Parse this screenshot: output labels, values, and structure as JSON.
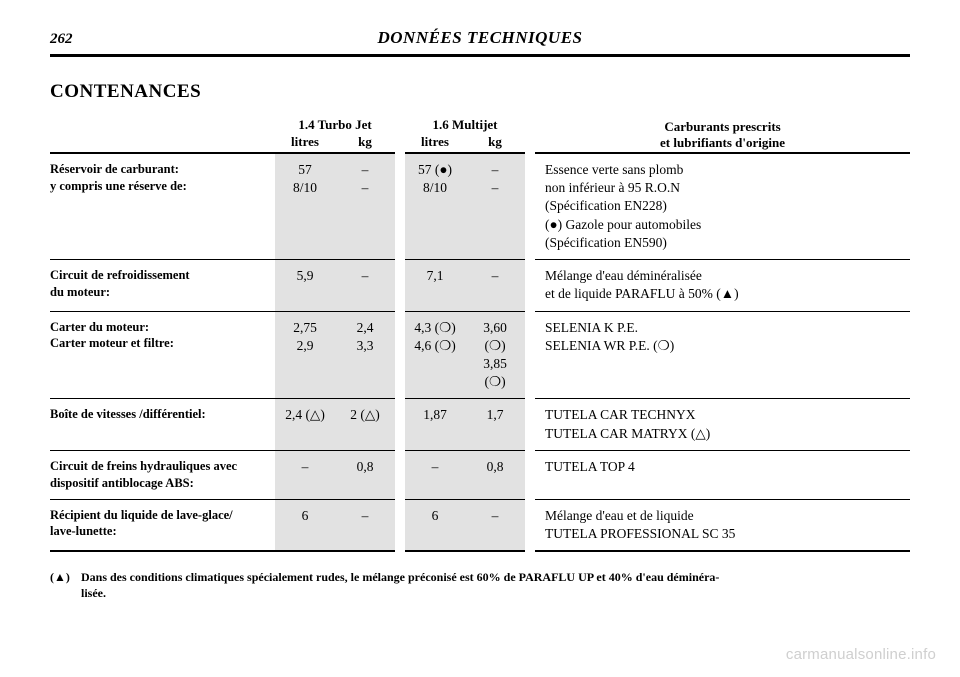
{
  "page_number": "262",
  "header": "DONNÉES TECHNIQUES",
  "section_title": "CONTENANCES",
  "columns": {
    "engine_a": "1.4 Turbo Jet",
    "engine_b": "1.6 Multijet",
    "unit_l": "litres",
    "unit_kg": "kg",
    "right": "Carburants prescrits\net lubrifiants d'origine"
  },
  "rows": [
    {
      "label": "Réservoir de carburant:\ny compris une réserve de:",
      "a_l": "57\n8/10",
      "a_kg": "–\n–",
      "b_l": "57 (●)\n8/10",
      "b_kg": "–\n–",
      "spec": "Essence verte sans plomb\nnon inférieur à 95 R.O.N\n(Spécification EN228)\n(●) Gazole pour automobiles\n(Spécification EN590)"
    },
    {
      "label": "Circuit de refroidissement\ndu moteur:",
      "a_l": "5,9",
      "a_kg": "–",
      "b_l": "7,1",
      "b_kg": "–",
      "spec": "Mélange d'eau déminéralisée\net de liquide PARAFLU à 50% (▲)"
    },
    {
      "label": "Carter du moteur:\nCarter moteur et filtre:",
      "a_l": "2,75\n2,9",
      "a_kg": "2,4\n3,3",
      "b_l": "4,3 (❍)\n4,6 (❍)",
      "b_kg": "3,60 (❍)\n3,85 (❍)",
      "spec": "SELENIA K P.E.\nSELENIA WR P.E. (❍)"
    },
    {
      "label": "Boîte de vitesses /différentiel:",
      "a_l": "2,4 (△)",
      "a_kg": "2 (△)",
      "b_l": "1,87",
      "b_kg": "1,7",
      "spec": "TUTELA CAR TECHNYX\nTUTELA CAR MATRYX (△)"
    },
    {
      "label": "Circuit de freins hydrauliques avec\ndispositif antiblocage ABS:",
      "a_l": "–",
      "a_kg": "0,8",
      "b_l": "–",
      "b_kg": "0,8",
      "spec": "TUTELA TOP 4"
    },
    {
      "label": "Récipient du liquide de lave-glace/\nlave-lunette:",
      "a_l": "6",
      "a_kg": "–",
      "b_l": "6",
      "b_kg": "–",
      "spec": "Mélange d'eau et de liquide\nTUTELA PROFESSIONAL SC 35"
    }
  ],
  "footnote_key": "(▲)",
  "footnote_text": "Dans des conditions climatiques spécialement rudes, le mélange préconisé est 60% de PARAFLU UP et 40% d'eau déminéra-\nlisée.",
  "watermark": "carmanualsonline.info",
  "symbols": {
    "dot": "●",
    "tri_up_fill": "▲",
    "circle_open": "❍",
    "tri_up_open": "△"
  },
  "colors": {
    "shade": "#e2e2e2",
    "text": "#000000",
    "watermark": "#cfcfcf",
    "bg": "#ffffff"
  }
}
